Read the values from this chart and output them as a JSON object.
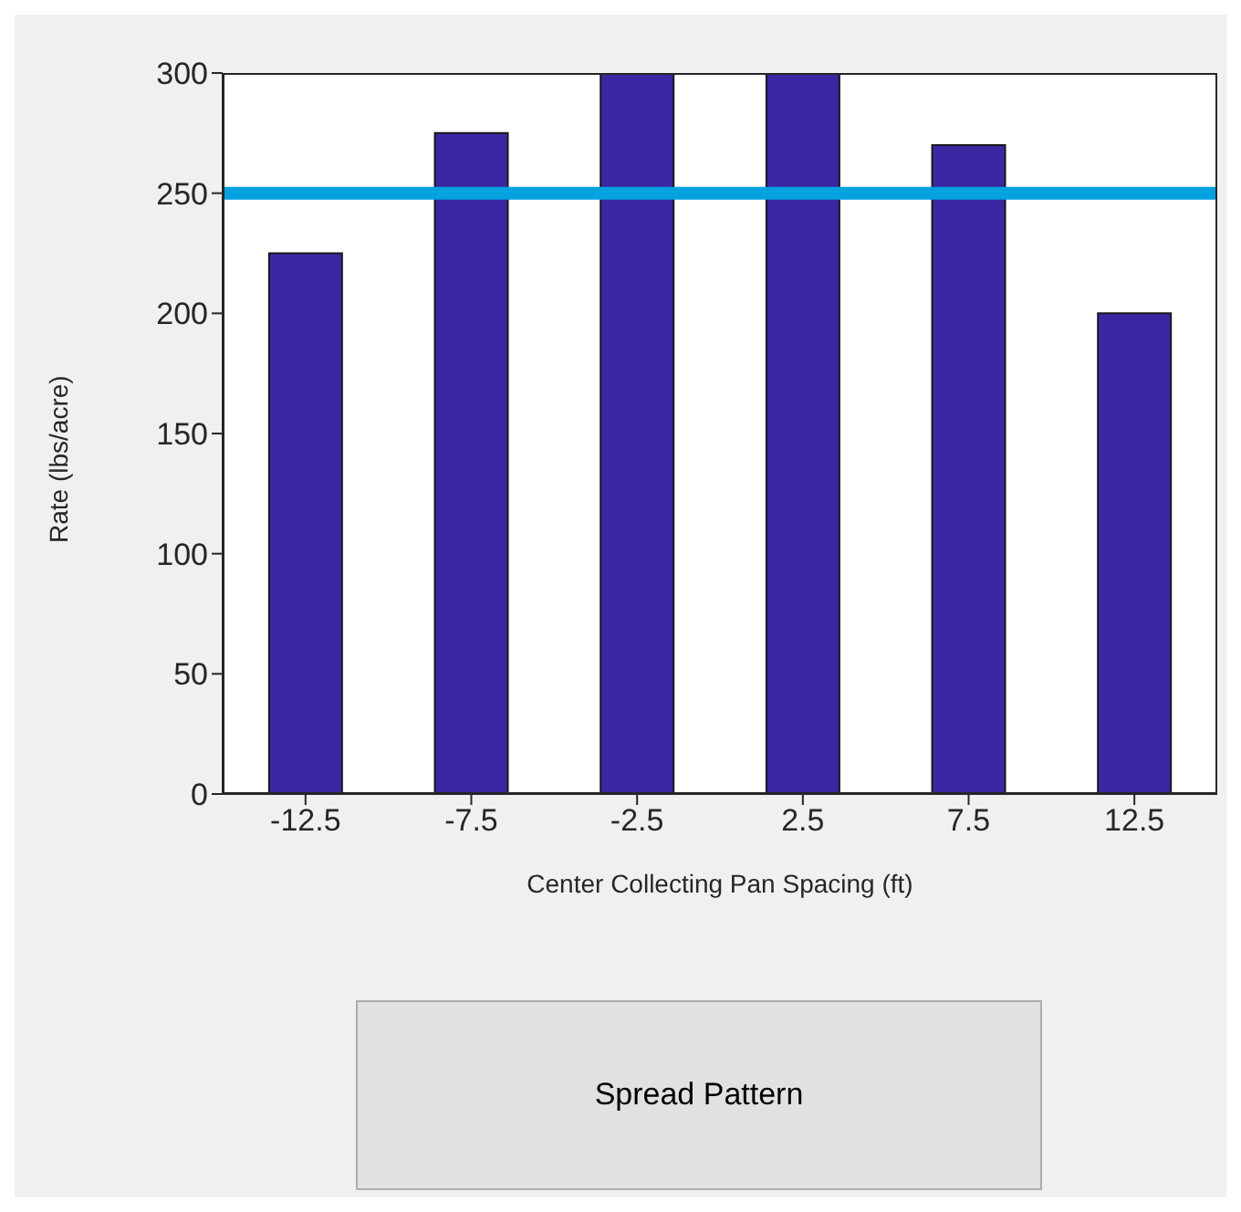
{
  "chart_data": {
    "type": "bar",
    "xlabel": "Center Collecting Pan Spacing (ft)",
    "ylabel": "Rate (lbs/acre)",
    "categories": [
      "-12.5",
      "-7.5",
      "-2.5",
      "2.5",
      "7.5",
      "12.5"
    ],
    "values": [
      225,
      275,
      300,
      300,
      270,
      200
    ],
    "color": "#3a27a4",
    "ylim": [
      0,
      300
    ],
    "yticks": [
      0,
      50,
      100,
      150,
      200,
      250,
      300
    ],
    "grid": false,
    "ref_lines": [
      {
        "axis": "y",
        "value": 250,
        "color": "#00a2e0"
      }
    ],
    "annotations": [
      "Spread Pattern"
    ]
  }
}
